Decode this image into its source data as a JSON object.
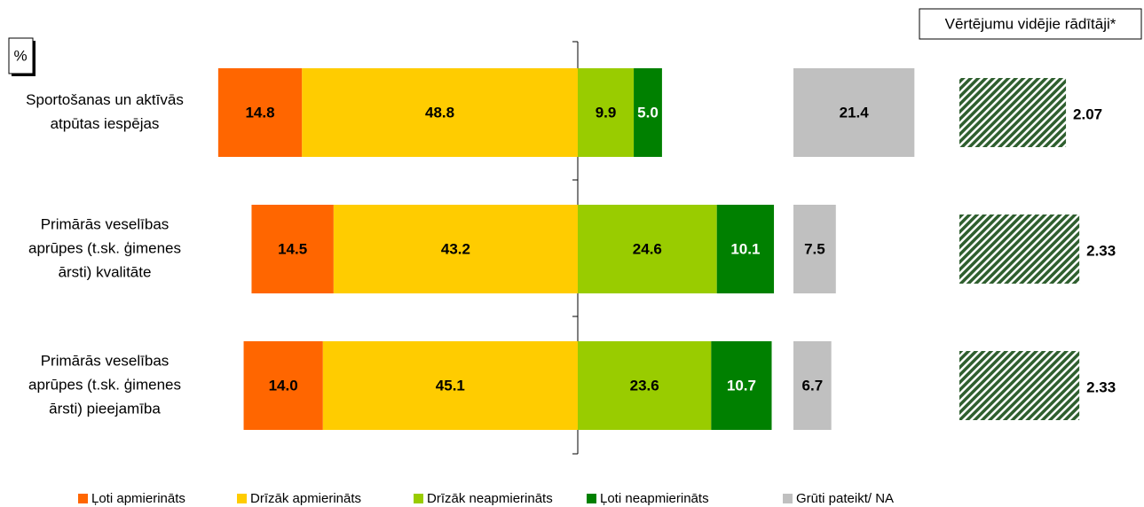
{
  "chart_data": {
    "type": "diverging_bar",
    "unit_label": "%",
    "average_title": "Vērtējumu vidējie rādītāji*",
    "categories": [
      [
        "Sportošanas un aktīvās",
        "atpūtas iespējas"
      ],
      [
        "Primārās veselības",
        "aprūpes (t.sk. ģimenes",
        "ārsti) kvalitāte"
      ],
      [
        "Primārās veselības",
        "aprūpes (t.sk. ģimenes",
        "ārsti) pieejamība"
      ]
    ],
    "series": [
      {
        "name": "Ļoti apmierināts",
        "color": "#ff6600",
        "values": [
          14.8,
          14.5,
          14.0
        ]
      },
      {
        "name": "Drīzāk apmierināts",
        "color": "#ffcc00",
        "values": [
          48.8,
          43.2,
          45.1
        ]
      },
      {
        "name": "Drīzāk neapmierināts",
        "color": "#99cc00",
        "values": [
          9.9,
          24.6,
          23.6
        ]
      },
      {
        "name": "Ļoti neapmierināts",
        "color": "#008000",
        "values": [
          5.0,
          10.1,
          10.7
        ]
      },
      {
        "name": "Grūti pateikt/ NA",
        "color": "#c0c0c0",
        "values": [
          21.4,
          7.5,
          6.7
        ]
      }
    ],
    "value_labels": [
      [
        "14.8",
        "14.5",
        "14.0"
      ],
      [
        "48.8",
        "43.2",
        "45.1"
      ],
      [
        "9.9",
        "24.6",
        "23.6"
      ],
      [
        "5.0",
        "10.1",
        "10.7"
      ],
      [
        "21.4",
        "7.5",
        "6.7"
      ]
    ],
    "averages": [
      2.07,
      2.33,
      2.33
    ]
  }
}
